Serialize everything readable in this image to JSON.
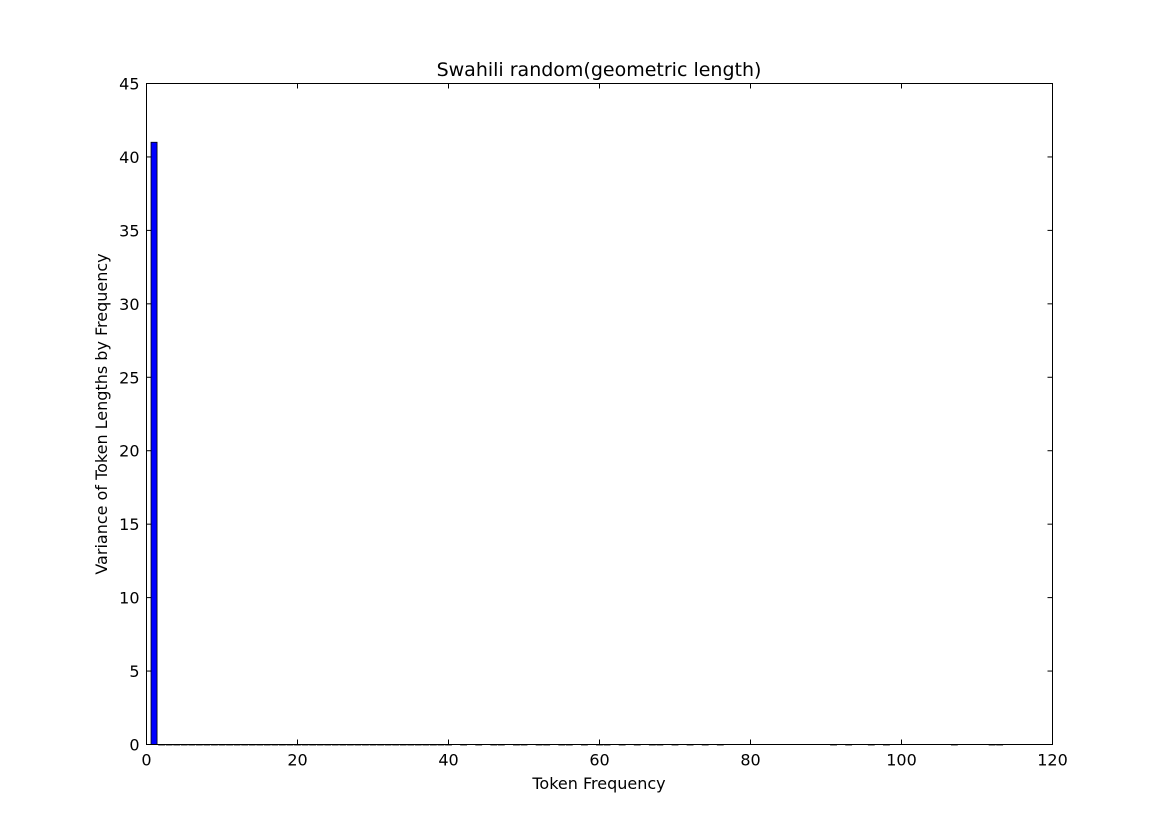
{
  "chart_data": {
    "type": "bar",
    "title": "Swahili random(geometric length)",
    "xlabel": "Token Frequency",
    "ylabel": "Variance of Token Lengths by Frequency",
    "xlim": [
      0,
      120
    ],
    "ylim": [
      0,
      45
    ],
    "xticks": [
      "0",
      "20",
      "40",
      "60",
      "80",
      "100",
      "120"
    ],
    "yticks": [
      "0",
      "5",
      "10",
      "15",
      "20",
      "25",
      "30",
      "35",
      "40",
      "45"
    ],
    "bar_width": 0.8,
    "bar_color": "#0000ff",
    "bars": [
      {
        "x": 1,
        "value": 41
      },
      {
        "x": 2,
        "value": 0
      },
      {
        "x": 3,
        "value": 0
      },
      {
        "x": 4,
        "value": 0
      },
      {
        "x": 5,
        "value": 0
      },
      {
        "x": 6,
        "value": 0
      },
      {
        "x": 7,
        "value": 0
      },
      {
        "x": 8,
        "value": 0
      },
      {
        "x": 9,
        "value": 0
      },
      {
        "x": 10,
        "value": 0
      },
      {
        "x": 11,
        "value": 0
      },
      {
        "x": 12,
        "value": 0
      },
      {
        "x": 13,
        "value": 0
      },
      {
        "x": 14,
        "value": 0
      },
      {
        "x": 15,
        "value": 0
      },
      {
        "x": 16,
        "value": 0
      },
      {
        "x": 17,
        "value": 0
      },
      {
        "x": 18,
        "value": 0
      },
      {
        "x": 19,
        "value": 0
      },
      {
        "x": 20,
        "value": 0
      },
      {
        "x": 21,
        "value": 0
      },
      {
        "x": 22,
        "value": 0
      },
      {
        "x": 23,
        "value": 0
      },
      {
        "x": 24,
        "value": 0
      },
      {
        "x": 25,
        "value": 0
      },
      {
        "x": 26,
        "value": 0
      },
      {
        "x": 27,
        "value": 0
      },
      {
        "x": 28,
        "value": 0
      },
      {
        "x": 29,
        "value": 0
      },
      {
        "x": 30,
        "value": 0
      },
      {
        "x": 31,
        "value": 0
      },
      {
        "x": 32,
        "value": 0
      },
      {
        "x": 33,
        "value": 0
      },
      {
        "x": 34,
        "value": 0
      },
      {
        "x": 35,
        "value": 0
      },
      {
        "x": 36,
        "value": 0
      },
      {
        "x": 37,
        "value": 0
      },
      {
        "x": 38,
        "value": 0
      },
      {
        "x": 39,
        "value": 0
      },
      {
        "x": 40,
        "value": 0
      },
      {
        "x": 42,
        "value": 0
      },
      {
        "x": 44,
        "value": 0
      },
      {
        "x": 46,
        "value": 0
      },
      {
        "x": 47,
        "value": 0
      },
      {
        "x": 49,
        "value": 0
      },
      {
        "x": 50,
        "value": 0
      },
      {
        "x": 52,
        "value": 0
      },
      {
        "x": 53,
        "value": 0
      },
      {
        "x": 55,
        "value": 0
      },
      {
        "x": 56,
        "value": 0
      },
      {
        "x": 58,
        "value": 0
      },
      {
        "x": 60,
        "value": 0
      },
      {
        "x": 61,
        "value": 0
      },
      {
        "x": 63,
        "value": 0
      },
      {
        "x": 65,
        "value": 0
      },
      {
        "x": 67,
        "value": 0
      },
      {
        "x": 68,
        "value": 0
      },
      {
        "x": 70,
        "value": 0
      },
      {
        "x": 72,
        "value": 0
      },
      {
        "x": 74,
        "value": 0
      },
      {
        "x": 76,
        "value": 0
      },
      {
        "x": 91,
        "value": 0
      },
      {
        "x": 93,
        "value": 0
      },
      {
        "x": 96,
        "value": 0
      },
      {
        "x": 98,
        "value": 0
      },
      {
        "x": 107,
        "value": 0
      },
      {
        "x": 112,
        "value": 0
      },
      {
        "x": 113,
        "value": 0
      }
    ]
  }
}
